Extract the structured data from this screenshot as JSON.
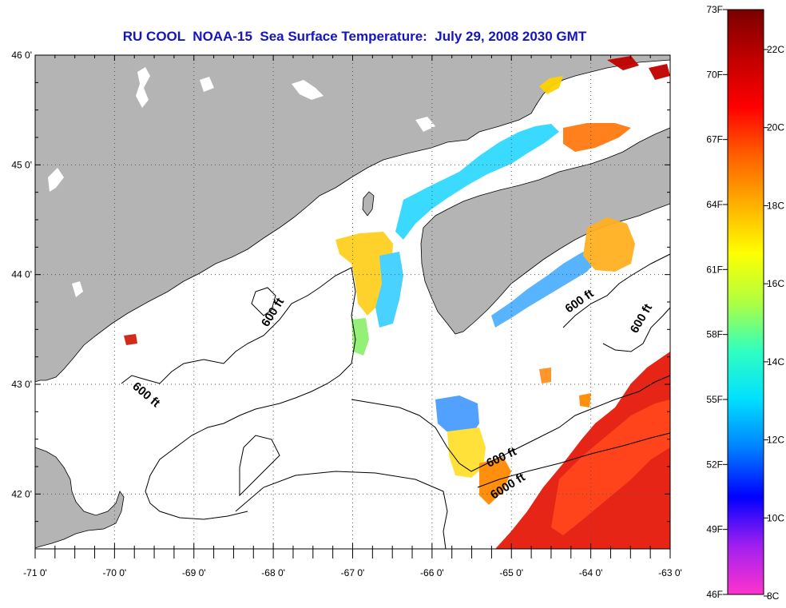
{
  "title": "RU COOL  NOAA-15  Sea Surface Temperature:  July 29, 2008 2030 GMT",
  "map": {
    "lon_range": [
      -71,
      -63
    ],
    "lat_range": [
      41.5,
      46
    ],
    "lat_ticks": [
      {
        "value": 46,
        "label": "46 0'"
      },
      {
        "value": 45,
        "label": "45 0'"
      },
      {
        "value": 44,
        "label": "44 0'"
      },
      {
        "value": 43,
        "label": "43 0'"
      },
      {
        "value": 42,
        "label": "42 0'"
      }
    ],
    "lon_ticks": [
      {
        "value": -71,
        "label": "-71 0'"
      },
      {
        "value": -70,
        "label": "-70 0'"
      },
      {
        "value": -69,
        "label": "-69 0'"
      },
      {
        "value": -68,
        "label": "-68 0'"
      },
      {
        "value": -67,
        "label": "-67 0'"
      },
      {
        "value": -66,
        "label": "-66 0'"
      },
      {
        "value": -65,
        "label": "-65 0'"
      },
      {
        "value": -64,
        "label": "-64 0'"
      },
      {
        "value": -63,
        "label": "-63 0'"
      }
    ],
    "land_color": "#b4b4b4",
    "ocean_color": "#ffffff",
    "contour_labels": [
      "600 ft",
      "600 ft",
      "600 ft",
      "600 ft",
      "600 ft",
      "6000 ft"
    ]
  },
  "colorbar": {
    "fahrenheit_labels": [
      "73F",
      "70F",
      "67F",
      "64F",
      "61F",
      "58F",
      "55F",
      "52F",
      "49F",
      "46F"
    ],
    "celsius_labels": [
      "22C",
      "20C",
      "18C",
      "16C",
      "14C",
      "12C",
      "10C",
      "8C"
    ],
    "colors": [
      "#ff33cc",
      "#a020f0",
      "#0000ff",
      "#0080ff",
      "#00e0ff",
      "#30ffc0",
      "#b0ff40",
      "#ffff00",
      "#ffb000",
      "#ff6000",
      "#ff0000",
      "#c00000",
      "#7a0000"
    ]
  }
}
